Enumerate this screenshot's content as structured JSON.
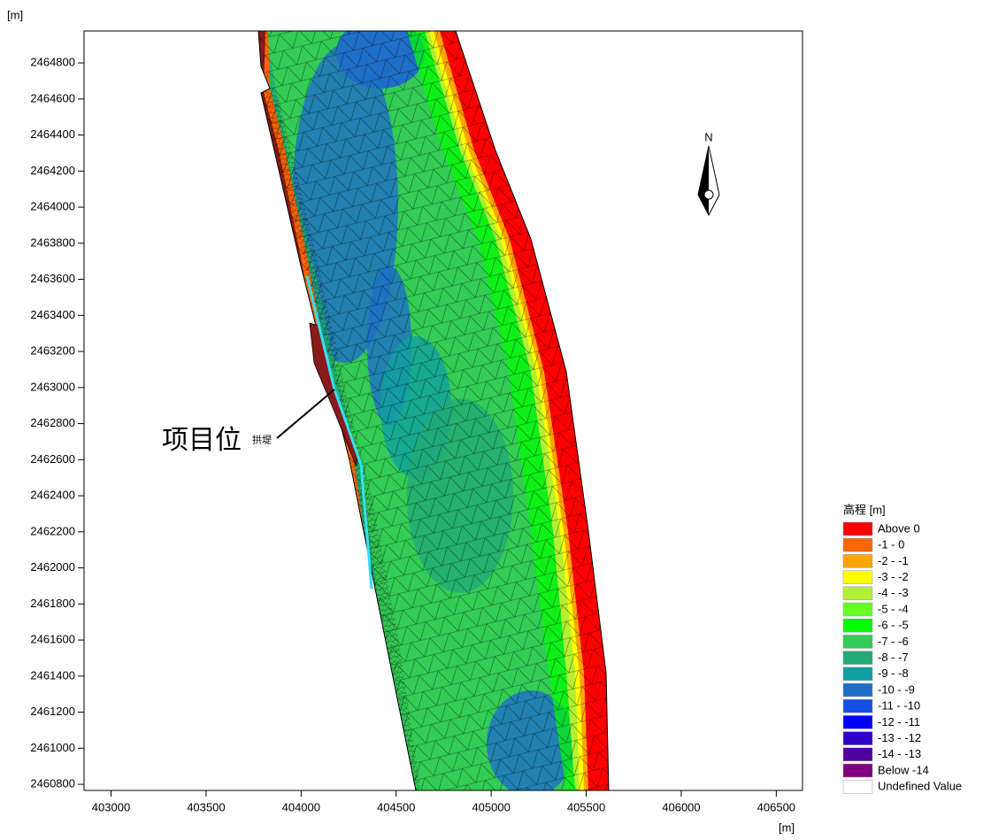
{
  "chart_data": {
    "type": "contour-map",
    "x_label": "[m]",
    "y_label": "[m]",
    "xlim": [
      402858,
      406638
    ],
    "ylim": [
      2460766,
      2464977
    ],
    "xticks": [
      403000,
      403500,
      404000,
      404500,
      405000,
      405500,
      406000,
      406500
    ],
    "yticks": [
      2460800,
      2461000,
      2461200,
      2461400,
      2461600,
      2461800,
      2462000,
      2462200,
      2462400,
      2462600,
      2462800,
      2463000,
      2463200,
      2463400,
      2463600,
      2463800,
      2464000,
      2464200,
      2464400,
      2464600,
      2464800
    ],
    "annotation": "项目位",
    "annotation_small": "拱堤",
    "north_label": "N",
    "legend": {
      "title": "高程 [m]",
      "items": [
        {
          "label": "Above 0",
          "color": "#ff0000"
        },
        {
          "label": "-1 - 0",
          "color": "#ff6600"
        },
        {
          "label": "-2 - -1",
          "color": "#ffa500"
        },
        {
          "label": "-3 - -2",
          "color": "#ffff00"
        },
        {
          "label": "-4 - -3",
          "color": "#b4f032"
        },
        {
          "label": "-5 - -4",
          "color": "#64ff20"
        },
        {
          "label": "-6 - -5",
          "color": "#00ff00"
        },
        {
          "label": "-7 - -6",
          "color": "#33cc55"
        },
        {
          "label": "-8 - -7",
          "color": "#22aa77"
        },
        {
          "label": "-9 - -8",
          "color": "#10a0a0"
        },
        {
          "label": "-10 - -9",
          "color": "#1e6ec8"
        },
        {
          "label": "-11 - -10",
          "color": "#1450e6"
        },
        {
          "label": "-12 - -11",
          "color": "#0000ff"
        },
        {
          "label": "-13 - -12",
          "color": "#3000c8"
        },
        {
          "label": "-14 - -13",
          "color": "#5000a0"
        },
        {
          "label": "Below -14",
          "color": "#800080"
        },
        {
          "label": "Undefined Value",
          "color": "#ffffff"
        }
      ]
    }
  }
}
